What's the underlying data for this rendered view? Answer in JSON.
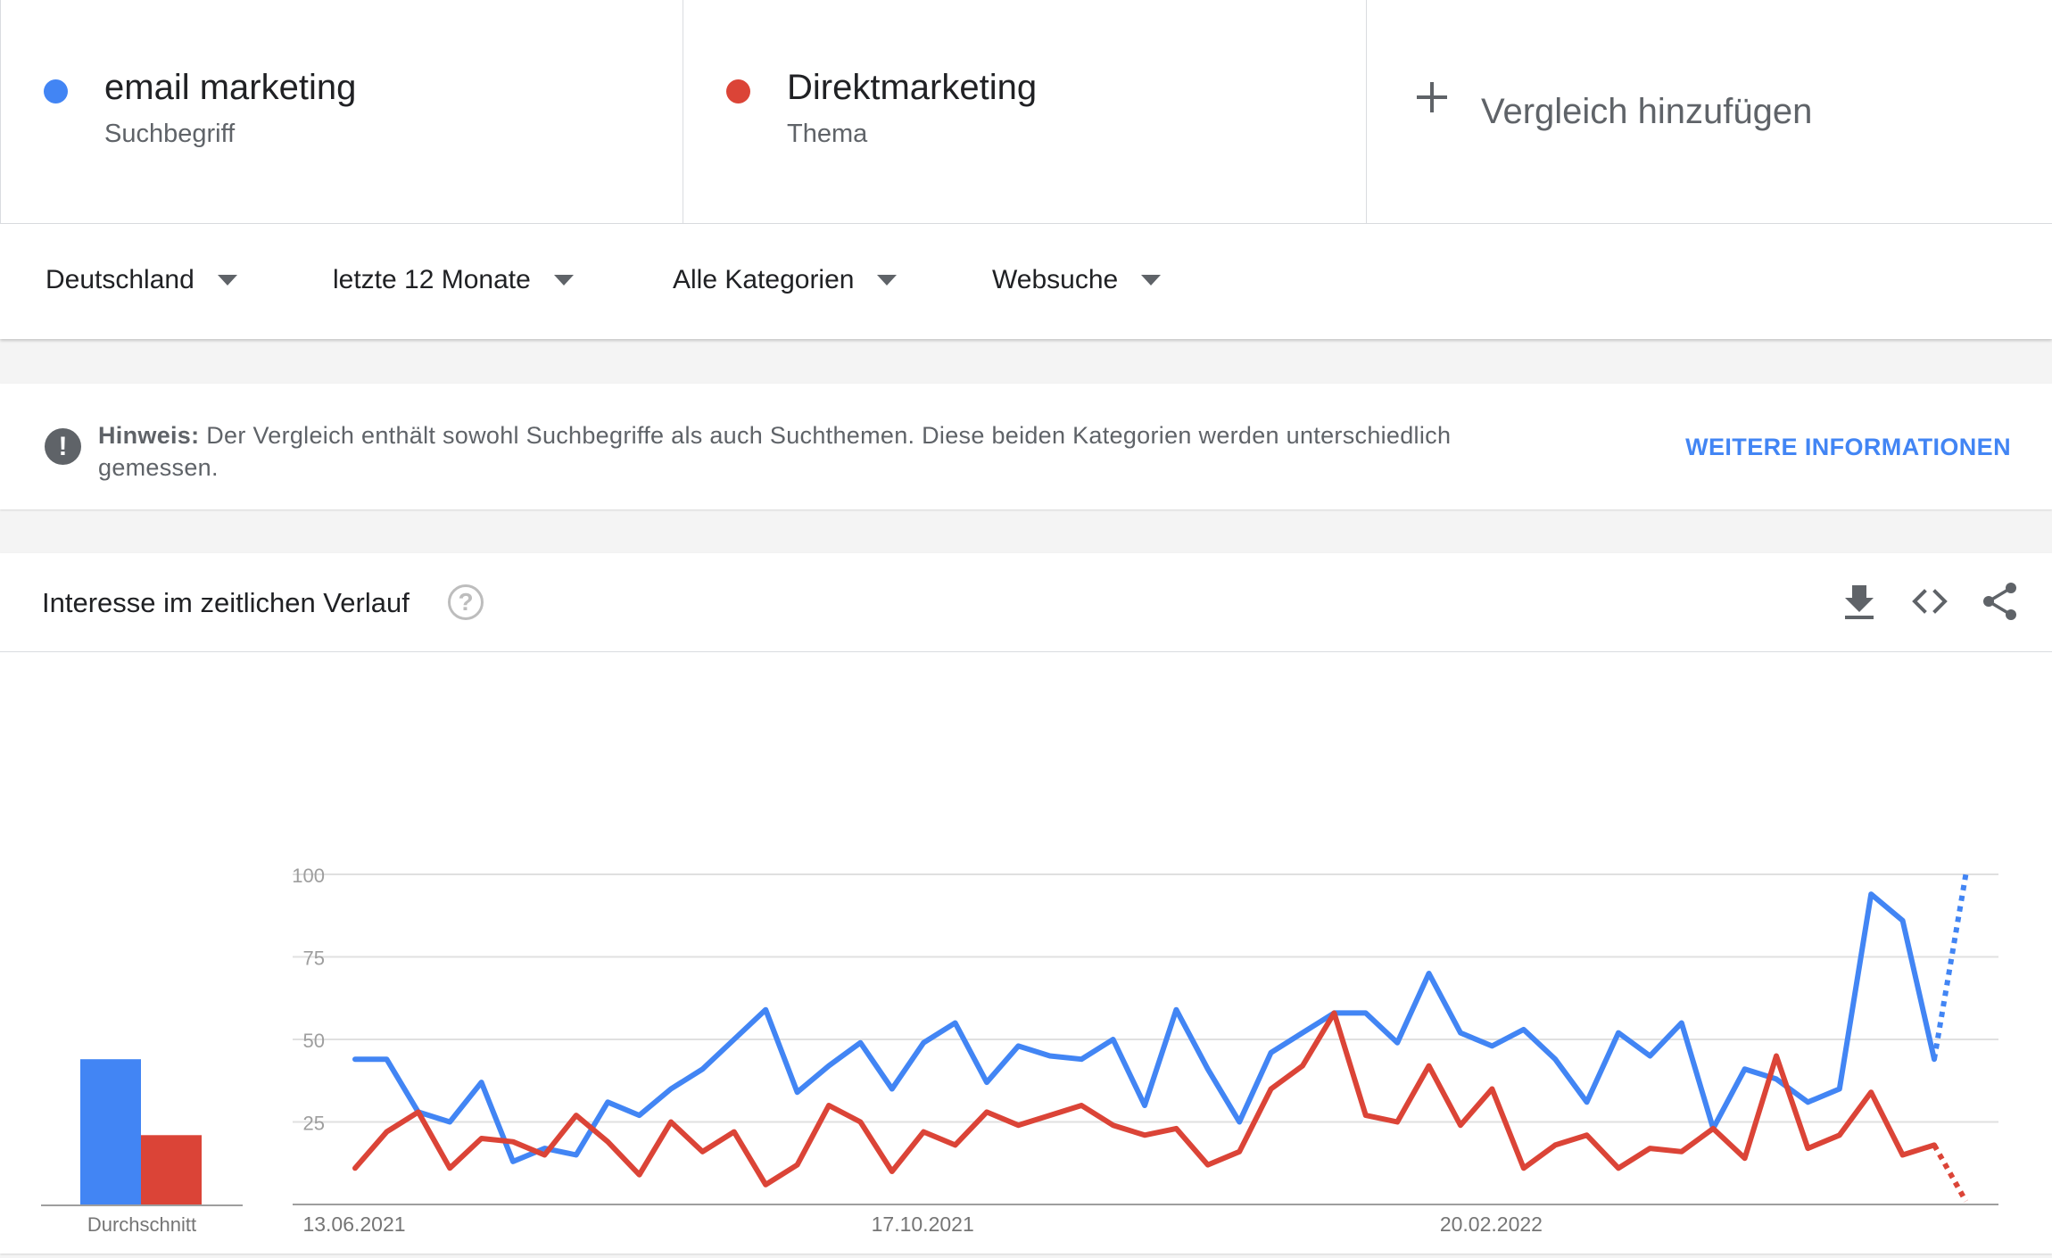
{
  "terms": [
    {
      "name": "email marketing",
      "kind": "Suchbegriff",
      "color": "#4285f4"
    },
    {
      "name": "Direktmarketing",
      "kind": "Thema",
      "color": "#db4437"
    }
  ],
  "add_compare": "Vergleich hinzufügen",
  "filters": {
    "region": "Deutschland",
    "period": "letzte 12 Monate",
    "category": "Alle Kategorien",
    "search_type": "Websuche"
  },
  "notice": {
    "label": "Hinweis:",
    "text": "Der Vergleich enthält sowohl Suchbegriffe als auch Suchthemen. Diese beiden Kategorien werden unterschiedlich gemessen.",
    "link": "WEITERE INFORMATIONEN"
  },
  "chart_section": {
    "title": "Interesse im zeitlichen Verlauf",
    "help_glyph": "?",
    "icons": [
      "download-icon",
      "embed-code-icon",
      "share-icon"
    ]
  },
  "chart_data": {
    "type": "line",
    "ylim": [
      0,
      100
    ],
    "yticks": [
      100,
      75,
      50,
      25
    ],
    "xtick_labels": [
      {
        "index": 0,
        "label": "13.06.2021"
      },
      {
        "index": 18,
        "label": "17.10.2021"
      },
      {
        "index": 36,
        "label": "20.02.2022"
      }
    ],
    "series": [
      {
        "name": "email marketing",
        "color": "#4285f4",
        "values": [
          44,
          44,
          28,
          25,
          37,
          13,
          17,
          15,
          31,
          27,
          35,
          41,
          50,
          59,
          34,
          42,
          49,
          35,
          49,
          55,
          37,
          48,
          45,
          44,
          50,
          30,
          59,
          41,
          25,
          46,
          52,
          58,
          58,
          49,
          70,
          52,
          48,
          53,
          44,
          31,
          52,
          45,
          55,
          23,
          41,
          38,
          31,
          35,
          94,
          86,
          44,
          100
        ],
        "partial_from": 50
      },
      {
        "name": "Direktmarketing",
        "color": "#db4437",
        "values": [
          11,
          22,
          28,
          11,
          20,
          19,
          15,
          27,
          19,
          9,
          25,
          16,
          22,
          6,
          12,
          30,
          25,
          10,
          22,
          18,
          28,
          24,
          27,
          30,
          24,
          21,
          23,
          12,
          16,
          35,
          42,
          58,
          27,
          25,
          42,
          24,
          35,
          11,
          18,
          21,
          11,
          17,
          16,
          23,
          14,
          45,
          17,
          21,
          34,
          15,
          18,
          1
        ],
        "partial_from": 50
      }
    ],
    "averages": {
      "label": "Durchschnitt",
      "values": [
        {
          "name": "email marketing",
          "value": 44,
          "color": "#4285f4"
        },
        {
          "name": "Direktmarketing",
          "value": 21,
          "color": "#db4437"
        }
      ]
    }
  }
}
